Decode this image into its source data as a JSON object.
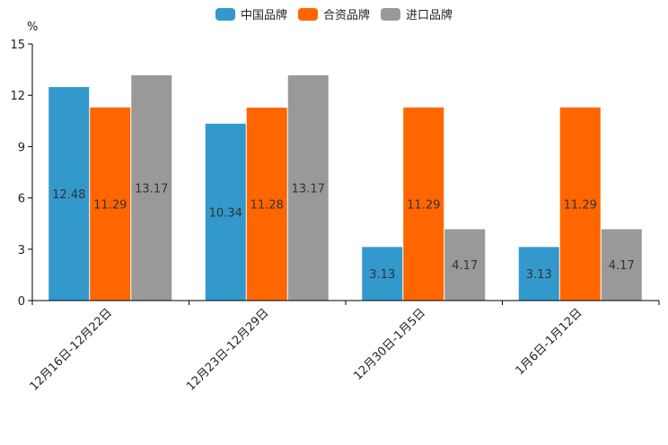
{
  "chart_data": {
    "type": "bar",
    "title": "",
    "xlabel": "",
    "ylabel": "%",
    "ylim": [
      0,
      15
    ],
    "yticks": [
      0,
      3,
      6,
      9,
      12,
      15
    ],
    "grid": false,
    "legend_position": "top-center",
    "categories": [
      "12月16日-12月22日",
      "12月23日-12月29日",
      "12月30日-1月5日",
      "1月6日-1月12日"
    ],
    "series": [
      {
        "name": "中国品牌",
        "color": "#3399cc",
        "values": [
          12.48,
          10.34,
          3.13,
          3.13
        ],
        "labels": [
          "12.48",
          "10.34",
          "3.13",
          "3.13"
        ]
      },
      {
        "name": "合资品牌",
        "color": "#ff6600",
        "values": [
          11.29,
          11.28,
          11.29,
          11.29
        ],
        "labels": [
          "11.29",
          "11.28",
          "11.29",
          "11.29"
        ]
      },
      {
        "name": "进口品牌",
        "color": "#999999",
        "values": [
          13.17,
          13.17,
          4.17,
          4.17
        ],
        "labels": [
          "13.17",
          "13.17",
          "4.17",
          "4.17"
        ]
      }
    ]
  }
}
